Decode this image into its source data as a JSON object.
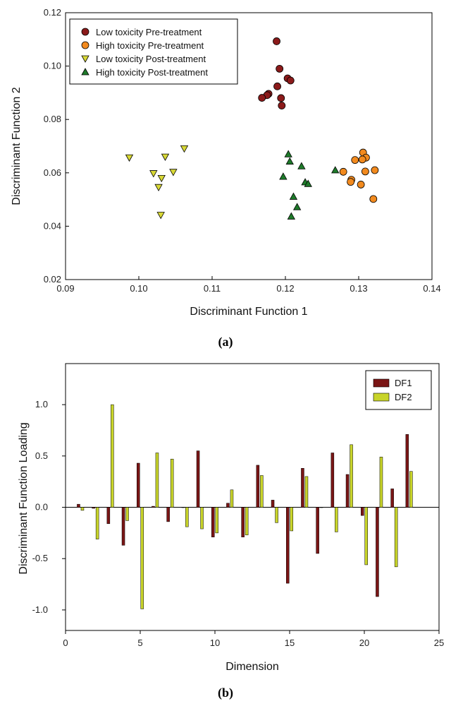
{
  "chart_data": [
    {
      "panel": "(a)",
      "type": "scatter",
      "xlabel": "Discriminant Function 1",
      "ylabel": "Discriminant Function 2",
      "xlim": [
        0.09,
        0.14
      ],
      "ylim": [
        0.02,
        0.12
      ],
      "xticks": [
        0.09,
        0.1,
        0.11,
        0.12,
        0.13,
        0.14
      ],
      "xtick_labels": [
        "0.09",
        "0.10",
        "0.11",
        "0.12",
        "0.13",
        "0.14"
      ],
      "yticks": [
        0.02,
        0.04,
        0.06,
        0.08,
        0.1,
        0.12
      ],
      "ytick_labels": [
        "0.02",
        "0.04",
        "0.06",
        "0.08",
        "0.10",
        "0.12"
      ],
      "legend_position": "top-left",
      "series": [
        {
          "name": "Low toxicity Pre-treatment",
          "marker": "circle",
          "color": "#8b1a1a",
          "points": [
            [
              0.1188,
              0.1093
            ],
            [
              0.1192,
              0.099
            ],
            [
              0.1203,
              0.0954
            ],
            [
              0.1207,
              0.0946
            ],
            [
              0.1189,
              0.0924
            ],
            [
              0.1177,
              0.0896
            ],
            [
              0.1175,
              0.0891
            ],
            [
              0.1168,
              0.0881
            ],
            [
              0.1194,
              0.088
            ],
            [
              0.1195,
              0.0852
            ]
          ]
        },
        {
          "name": "High toxicity Pre-treatment",
          "marker": "circle",
          "color": "#f28a1e",
          "points": [
            [
              0.1306,
              0.0676
            ],
            [
              0.131,
              0.0657
            ],
            [
              0.1305,
              0.065
            ],
            [
              0.1295,
              0.0648
            ],
            [
              0.1279,
              0.0604
            ],
            [
              0.1309,
              0.0605
            ],
            [
              0.1322,
              0.061
            ],
            [
              0.129,
              0.0574
            ],
            [
              0.1289,
              0.0566
            ],
            [
              0.1303,
              0.0556
            ],
            [
              0.132,
              0.0502
            ]
          ]
        },
        {
          "name": "Low toxicity Post-treatment",
          "marker": "triangle-down",
          "color": "#d8d836",
          "points": [
            [
              0.0987,
              0.0657
            ],
            [
              0.1062,
              0.0691
            ],
            [
              0.1036,
              0.066
            ],
            [
              0.102,
              0.0598
            ],
            [
              0.1047,
              0.0603
            ],
            [
              0.1031,
              0.058
            ],
            [
              0.1027,
              0.0546
            ],
            [
              0.103,
              0.0442
            ]
          ]
        },
        {
          "name": "High toxicity Post-treatment",
          "marker": "triangle-up",
          "color": "#1e7a2a",
          "points": [
            [
              0.1204,
              0.067
            ],
            [
              0.1206,
              0.0643
            ],
            [
              0.1222,
              0.0625
            ],
            [
              0.1268,
              0.061
            ],
            [
              0.1197,
              0.0586
            ],
            [
              0.1227,
              0.0565
            ],
            [
              0.1231,
              0.0559
            ],
            [
              0.1211,
              0.0511
            ],
            [
              0.1216,
              0.0472
            ],
            [
              0.1208,
              0.0437
            ]
          ]
        }
      ]
    },
    {
      "panel": "(b)",
      "type": "bar",
      "xlabel": "Dimension",
      "ylabel": "Discriminant Function Loading",
      "xlim": [
        0,
        25
      ],
      "ylim": [
        -1.2,
        1.4
      ],
      "xticks": [
        0,
        5,
        10,
        15,
        20,
        25
      ],
      "xtick_labels": [
        "0",
        "5",
        "10",
        "15",
        "20",
        "25"
      ],
      "yticks": [
        -1.0,
        -0.5,
        0.0,
        0.5,
        1.0
      ],
      "ytick_labels": [
        "-1.0",
        "-0.5",
        "0.0",
        "0.5",
        "1.0"
      ],
      "legend_position": "top-right",
      "categories": [
        1,
        2,
        3,
        4,
        5,
        6,
        7,
        8,
        9,
        10,
        11,
        12,
        13,
        14,
        15,
        16,
        17,
        18,
        19,
        20,
        21,
        22,
        23
      ],
      "series": [
        {
          "name": "DF1",
          "color": "#7a1515",
          "values": [
            0.03,
            -0.01,
            -0.16,
            -0.37,
            0.43,
            0.01,
            -0.14,
            0.0,
            0.55,
            -0.29,
            0.04,
            -0.29,
            0.41,
            0.07,
            -0.74,
            0.38,
            -0.45,
            0.53,
            0.32,
            -0.08,
            -0.87,
            0.18,
            0.71
          ]
        },
        {
          "name": "DF2",
          "color": "#c8d42a",
          "values": [
            -0.03,
            -0.31,
            1.0,
            -0.13,
            -0.99,
            0.53,
            0.47,
            -0.19,
            -0.21,
            -0.25,
            0.17,
            -0.27,
            0.31,
            -0.15,
            -0.23,
            0.3,
            0.0,
            -0.24,
            0.61,
            -0.56,
            0.49,
            -0.58,
            0.35
          ]
        }
      ]
    }
  ]
}
